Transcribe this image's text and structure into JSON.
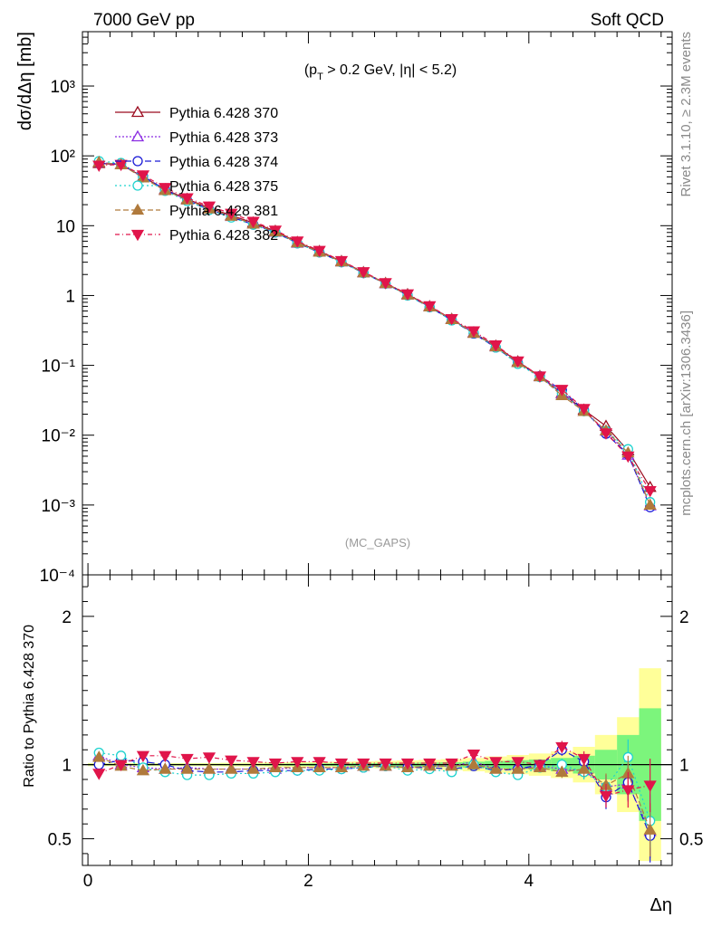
{
  "header": {
    "left": "7000 GeV pp",
    "right": "Soft QCD"
  },
  "annotation": {
    "cuts_html": "(p<tspan baseline-shift=\"sub\" font-size=\"11\">T</tspan> > 0.2 GeV, |η| < 5.2)",
    "cuts_text": "(pT > 0.2 GeV, |η| < 5.2)",
    "analysis": "(MC_GAPS)"
  },
  "side_labels": {
    "rivet": "Rivet 3.1.10, ≥ 2.3M events",
    "source": "mcplots.cern.ch [arXiv:1306.3436]"
  },
  "colors": {
    "370": "#9b0a1e",
    "373": "#8a2be2",
    "374": "#1a1ad6",
    "375": "#1fd3cf",
    "381": "#b07a3c",
    "382": "#e0154a",
    "band_outer": "#ffff99",
    "band_inner": "#7cf57c"
  },
  "chart_data": [
    {
      "type": "line",
      "panel": "main",
      "xlabel": "Δη",
      "ylabel": "dσ/dΔη [mb]",
      "xlim": [
        -0.05,
        5.3
      ],
      "ylim": [
        0.0001,
        6000
      ],
      "yscale": "log",
      "y_tick_labels": [
        "10⁻⁴",
        "10⁻³",
        "10⁻²",
        "10⁻¹",
        "1",
        "10",
        "10²",
        "10³"
      ],
      "x": [
        0.1,
        0.3,
        0.5,
        0.7,
        0.9,
        1.1,
        1.3,
        1.5,
        1.7,
        1.9,
        2.1,
        2.3,
        2.5,
        2.7,
        2.9,
        3.1,
        3.3,
        3.5,
        3.7,
        3.9,
        4.1,
        4.3,
        4.5,
        4.7,
        4.9,
        5.1
      ],
      "legend_position": "top-left",
      "series": [
        {
          "name": "Pythia 6.428 370",
          "key": "370",
          "marker": "triangle-open",
          "dash": "",
          "values": [
            78,
            75,
            50,
            33,
            24,
            18,
            14,
            11,
            8.4,
            5.8,
            4.3,
            3.1,
            2.15,
            1.5,
            1.04,
            0.7,
            0.46,
            0.29,
            0.19,
            0.113,
            0.07,
            0.04,
            0.023,
            0.0135,
            0.006,
            0.0018
          ]
        },
        {
          "name": "Pythia 6.428 373",
          "key": "373",
          "marker": "triangle-open",
          "dash": "2,2",
          "values": [
            81,
            75,
            49,
            32,
            23.5,
            17.5,
            13.6,
            10.6,
            8.1,
            5.65,
            4.2,
            3.05,
            2.12,
            1.48,
            1.02,
            0.69,
            0.455,
            0.295,
            0.185,
            0.11,
            0.069,
            0.039,
            0.022,
            0.0115,
            0.0052,
            0.00098
          ]
        },
        {
          "name": "Pythia 6.428 374",
          "key": "374",
          "marker": "circle-open",
          "dash": "7,4",
          "values": [
            78,
            77,
            51,
            33,
            23,
            17,
            13.3,
            10.4,
            8.0,
            5.6,
            4.15,
            3.0,
            2.1,
            1.48,
            1.01,
            0.68,
            0.445,
            0.285,
            0.18,
            0.108,
            0.07,
            0.044,
            0.023,
            0.0105,
            0.0053,
            0.00093
          ]
        },
        {
          "name": "Pythia 6.428 375",
          "key": "375",
          "marker": "circle-open",
          "dash": "2,3",
          "values": [
            84,
            79,
            49,
            31.5,
            22.5,
            16.8,
            13.1,
            10.3,
            8.0,
            5.6,
            4.15,
            3.0,
            2.1,
            1.48,
            1.0,
            0.68,
            0.44,
            0.29,
            0.18,
            0.105,
            0.068,
            0.04,
            0.022,
            0.0115,
            0.0063,
            0.0011
          ]
        },
        {
          "name": "Pythia 6.428 381",
          "key": "381",
          "marker": "triangle-filled",
          "dash": "6,3",
          "values": [
            81,
            75,
            48.5,
            32,
            23.5,
            17.5,
            13.7,
            10.6,
            8.2,
            5.7,
            4.2,
            3.05,
            2.12,
            1.49,
            1.02,
            0.69,
            0.455,
            0.29,
            0.185,
            0.11,
            0.069,
            0.037,
            0.022,
            0.0116,
            0.0056,
            0.001
          ]
        },
        {
          "name": "Pythia 6.428 382",
          "key": "382",
          "marker": "triangle-down-filled",
          "dash": "5,3,1,3",
          "values": [
            73,
            75,
            53,
            35,
            25,
            19,
            15,
            11.5,
            8.6,
            6.0,
            4.4,
            3.15,
            2.18,
            1.52,
            1.05,
            0.71,
            0.465,
            0.31,
            0.195,
            0.115,
            0.07,
            0.045,
            0.024,
            0.0107,
            0.005,
            0.0016
          ]
        }
      ]
    },
    {
      "type": "line",
      "panel": "ratio",
      "xlabel": "Δη",
      "ylabel": "Ratio to Pythia 6.428 370",
      "xlim": [
        -0.05,
        5.3
      ],
      "ylim": [
        0.32,
        2.28
      ],
      "x_ticks": [
        0,
        2,
        4
      ],
      "y_ticks": [
        0.5,
        1,
        2
      ],
      "x": [
        0.1,
        0.3,
        0.5,
        0.7,
        0.9,
        1.1,
        1.3,
        1.5,
        1.7,
        1.9,
        2.1,
        2.3,
        2.5,
        2.7,
        2.9,
        3.1,
        3.3,
        3.5,
        3.7,
        3.9,
        4.1,
        4.3,
        4.5,
        4.7,
        4.9,
        5.1
      ],
      "reference_band": {
        "inner_halfwidth": [
          0.005,
          0.005,
          0.005,
          0.005,
          0.005,
          0.005,
          0.005,
          0.005,
          0.006,
          0.007,
          0.008,
          0.009,
          0.01,
          0.011,
          0.012,
          0.014,
          0.016,
          0.02,
          0.025,
          0.03,
          0.035,
          0.045,
          0.06,
          0.1,
          0.2,
          0.38
        ],
        "outer_halfwidth": [
          0.01,
          0.01,
          0.01,
          0.01,
          0.01,
          0.01,
          0.012,
          0.013,
          0.015,
          0.017,
          0.018,
          0.02,
          0.022,
          0.025,
          0.028,
          0.032,
          0.037,
          0.045,
          0.055,
          0.065,
          0.075,
          0.09,
          0.12,
          0.2,
          0.32,
          0.65
        ]
      },
      "series": [
        {
          "name": "Pythia 6.428 373",
          "key": "373",
          "values": [
            1.06,
            1.0,
            0.98,
            0.97,
            0.98,
            0.97,
            0.97,
            0.97,
            0.97,
            0.98,
            0.98,
            0.98,
            0.99,
            0.99,
            0.98,
            0.99,
            0.99,
            1.02,
            0.97,
            0.97,
            0.99,
            0.97,
            0.96,
            0.85,
            0.87,
            0.55
          ],
          "errors": [
            0.01,
            0.01,
            0.01,
            0.01,
            0.01,
            0.01,
            0.01,
            0.01,
            0.01,
            0.01,
            0.01,
            0.01,
            0.01,
            0.01,
            0.01,
            0.01,
            0.01,
            0.02,
            0.02,
            0.02,
            0.03,
            0.04,
            0.05,
            0.08,
            0.12,
            0.18
          ]
        },
        {
          "name": "Pythia 6.428 374",
          "key": "374",
          "values": [
            1.0,
            1.03,
            1.02,
            1.0,
            0.96,
            0.95,
            0.95,
            0.96,
            0.96,
            0.96,
            0.97,
            0.97,
            0.98,
            0.99,
            0.98,
            0.98,
            0.97,
            0.99,
            0.96,
            0.97,
            1.0,
            1.1,
            1.02,
            0.78,
            0.88,
            0.52
          ],
          "errors": [
            0.01,
            0.01,
            0.01,
            0.01,
            0.01,
            0.01,
            0.01,
            0.01,
            0.01,
            0.01,
            0.01,
            0.01,
            0.01,
            0.01,
            0.01,
            0.01,
            0.01,
            0.02,
            0.02,
            0.02,
            0.03,
            0.04,
            0.05,
            0.08,
            0.12,
            0.18
          ]
        },
        {
          "name": "Pythia 6.428 375",
          "key": "375",
          "values": [
            1.08,
            1.06,
            0.98,
            0.95,
            0.93,
            0.93,
            0.94,
            0.94,
            0.95,
            0.96,
            0.96,
            0.97,
            0.98,
            0.99,
            0.96,
            0.97,
            0.95,
            1.0,
            0.95,
            0.93,
            0.98,
            1.0,
            0.95,
            0.85,
            1.05,
            0.62
          ],
          "errors": [
            0.01,
            0.01,
            0.01,
            0.01,
            0.01,
            0.01,
            0.01,
            0.01,
            0.01,
            0.01,
            0.01,
            0.01,
            0.01,
            0.01,
            0.01,
            0.01,
            0.01,
            0.02,
            0.02,
            0.02,
            0.03,
            0.04,
            0.05,
            0.08,
            0.12,
            0.18
          ]
        },
        {
          "name": "Pythia 6.428 381",
          "key": "381",
          "values": [
            1.05,
            0.99,
            0.96,
            0.97,
            0.97,
            0.97,
            0.97,
            0.97,
            0.98,
            0.98,
            0.98,
            0.98,
            0.99,
            0.99,
            0.98,
            0.99,
            0.99,
            1.0,
            0.97,
            0.97,
            0.98,
            0.95,
            0.97,
            0.86,
            0.94,
            0.56
          ],
          "errors": [
            0.01,
            0.01,
            0.01,
            0.01,
            0.01,
            0.01,
            0.01,
            0.01,
            0.01,
            0.01,
            0.01,
            0.01,
            0.01,
            0.01,
            0.01,
            0.01,
            0.01,
            0.02,
            0.02,
            0.02,
            0.03,
            0.04,
            0.05,
            0.08,
            0.12,
            0.18
          ]
        },
        {
          "name": "Pythia 6.428 382",
          "key": "382",
          "values": [
            0.94,
            1.0,
            1.06,
            1.06,
            1.04,
            1.05,
            1.03,
            1.02,
            1.01,
            1.02,
            1.02,
            1.01,
            1.01,
            1.01,
            1.01,
            1.01,
            1.01,
            1.07,
            1.02,
            1.02,
            1.0,
            1.12,
            1.04,
            0.79,
            0.83,
            0.86
          ],
          "errors": [
            0.01,
            0.01,
            0.01,
            0.01,
            0.01,
            0.01,
            0.01,
            0.01,
            0.01,
            0.01,
            0.01,
            0.01,
            0.01,
            0.01,
            0.01,
            0.01,
            0.01,
            0.02,
            0.02,
            0.02,
            0.03,
            0.04,
            0.05,
            0.08,
            0.12,
            0.18
          ]
        }
      ]
    }
  ]
}
